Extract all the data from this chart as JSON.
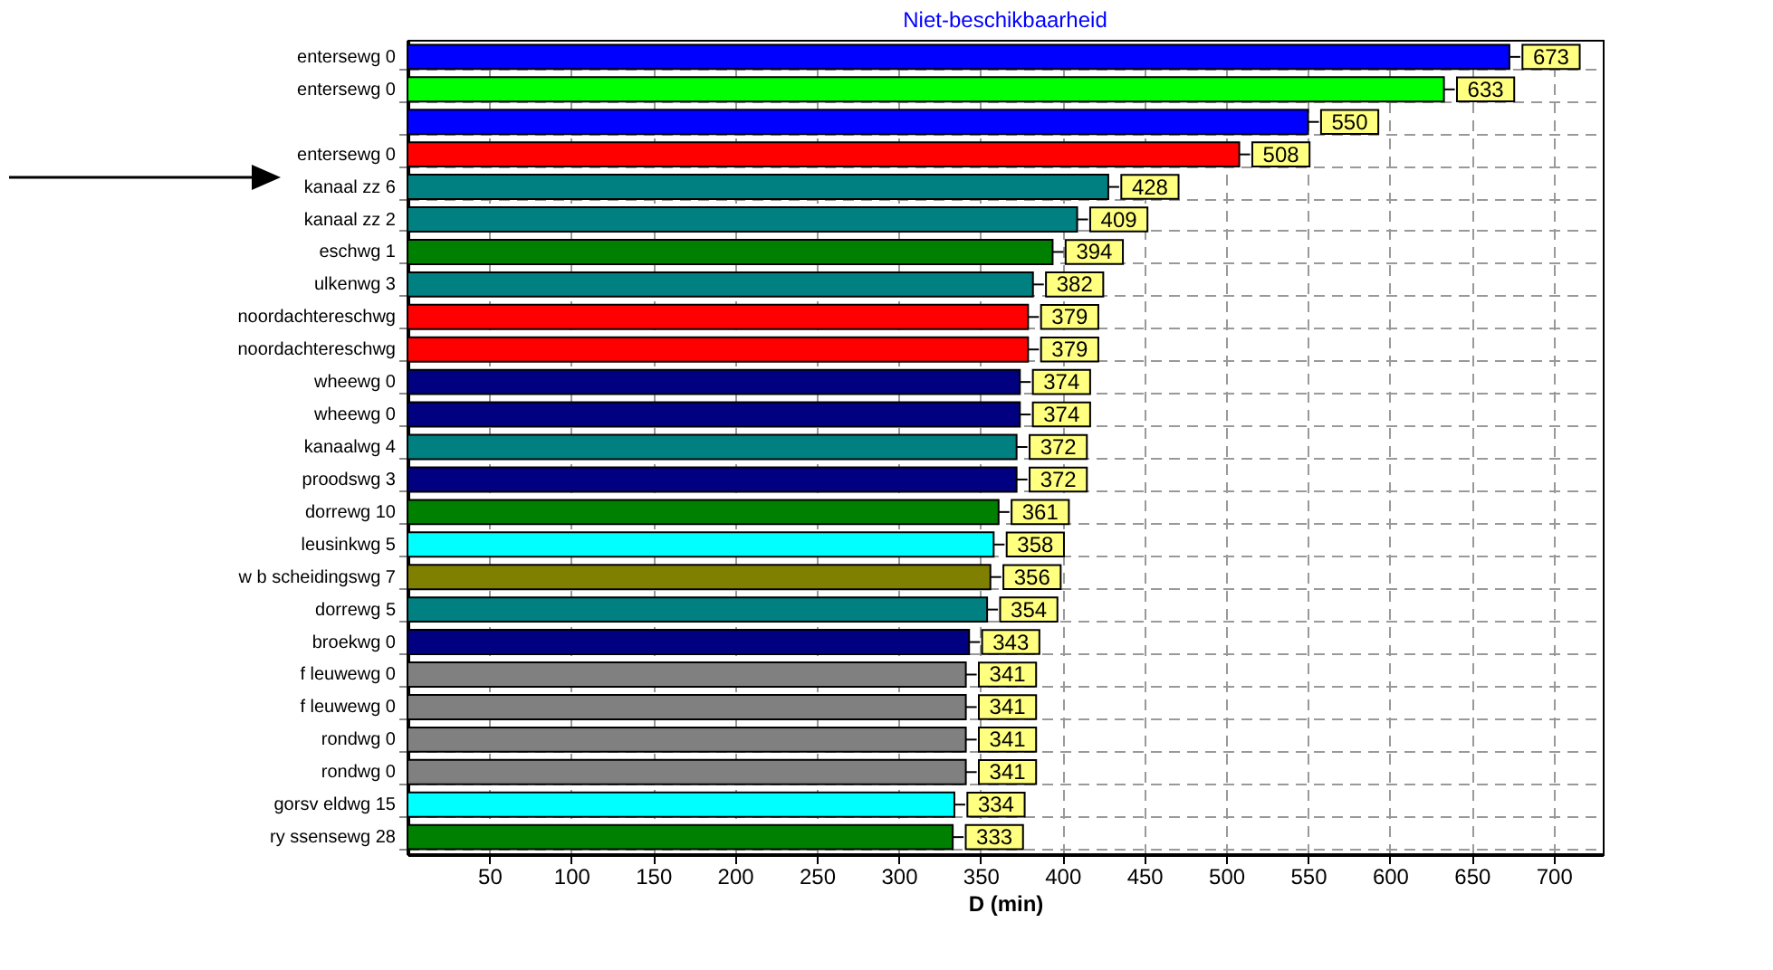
{
  "chart_data": {
    "type": "bar",
    "orientation": "horizontal",
    "title": "Niet-beschikbaarheid",
    "xlabel": "D (min)",
    "categories": [
      "entersewg 0",
      "entersewg 0",
      null,
      "entersewg 0",
      "kanaal zz 6",
      "kanaal zz 2",
      "eschwg 1",
      "ulkenwg 3",
      "noordachtereschwg",
      "noordachtereschwg",
      "wheewg 0",
      "wheewg 0",
      "kanaalwg 4",
      "proodswg 3",
      "dorrewg 10",
      "leusinkwg 5",
      "w b scheidingswg 7",
      "dorrewg 5",
      "broekwg 0",
      "f leuwewg 0",
      "f leuwewg 0",
      "rondwg 0",
      "rondwg 0",
      "gorsv eldwg 15",
      "ry ssensewg 28"
    ],
    "values": [
      673,
      633,
      550,
      508,
      428,
      409,
      394,
      382,
      379,
      379,
      374,
      374,
      372,
      372,
      361,
      358,
      356,
      354,
      343,
      341,
      341,
      341,
      341,
      334,
      333
    ],
    "colors": [
      "#0000ff",
      "#00ff00",
      "#0000ff",
      "#ff0000",
      "#008080",
      "#008080",
      "#008000",
      "#008080",
      "#ff0000",
      "#ff0000",
      "#000080",
      "#000080",
      "#008080",
      "#000080",
      "#008000",
      "#00ffff",
      "#808000",
      "#008080",
      "#000080",
      "#808080",
      "#808080",
      "#808080",
      "#808080",
      "#00ffff",
      "#008000"
    ],
    "xlim": [
      0,
      730
    ],
    "xticks": [
      50,
      100,
      150,
      200,
      250,
      300,
      350,
      400,
      450,
      500,
      550,
      600,
      650,
      700
    ],
    "data_labels": true,
    "grid": true
  }
}
